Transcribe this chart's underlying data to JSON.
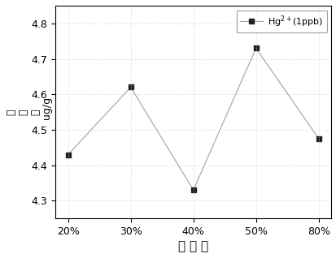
{
  "x_labels": [
    "20%",
    "30%",
    "40%",
    "50%",
    "80%"
  ],
  "x_values": [
    0,
    1,
    2,
    3,
    4
  ],
  "y_values": [
    4.43,
    4.62,
    4.33,
    4.73,
    4.475
  ],
  "ylim": [
    4.25,
    4.85
  ],
  "yticks": [
    4.3,
    4.4,
    4.5,
    4.6,
    4.7,
    4.8
  ],
  "line_color": "#aaaaaa",
  "marker_color": "#222222",
  "marker": "s",
  "marker_size": 5,
  "legend_label": "Hg$^{2+}$(1ppb)",
  "xlabel": "中 和 度",
  "ylabel_line1": "吸",
  "ylabel_line2": "附",
  "ylabel_line3": "量",
  "ylabel_line4": "  ug/g",
  "grid": true,
  "grid_color": "#cccccc",
  "grid_linestyle": ":"
}
